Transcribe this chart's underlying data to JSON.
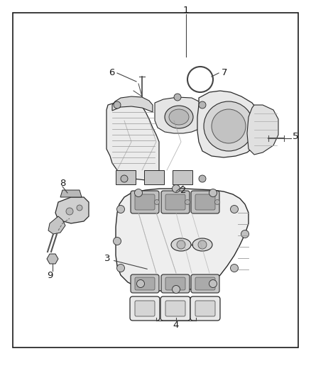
{
  "bg_color": "#ffffff",
  "border_color": "#1a1a1a",
  "text_color": "#1a1a1a",
  "line_color": "#333333",
  "part_edge": "#2a2a2a",
  "part_face": "#f0f0f0",
  "part_dark": "#d0d0d0",
  "part_mid": "#e0e0e0",
  "figsize": [
    4.38,
    5.33
  ],
  "dpi": 100,
  "border_lw": 1.2
}
